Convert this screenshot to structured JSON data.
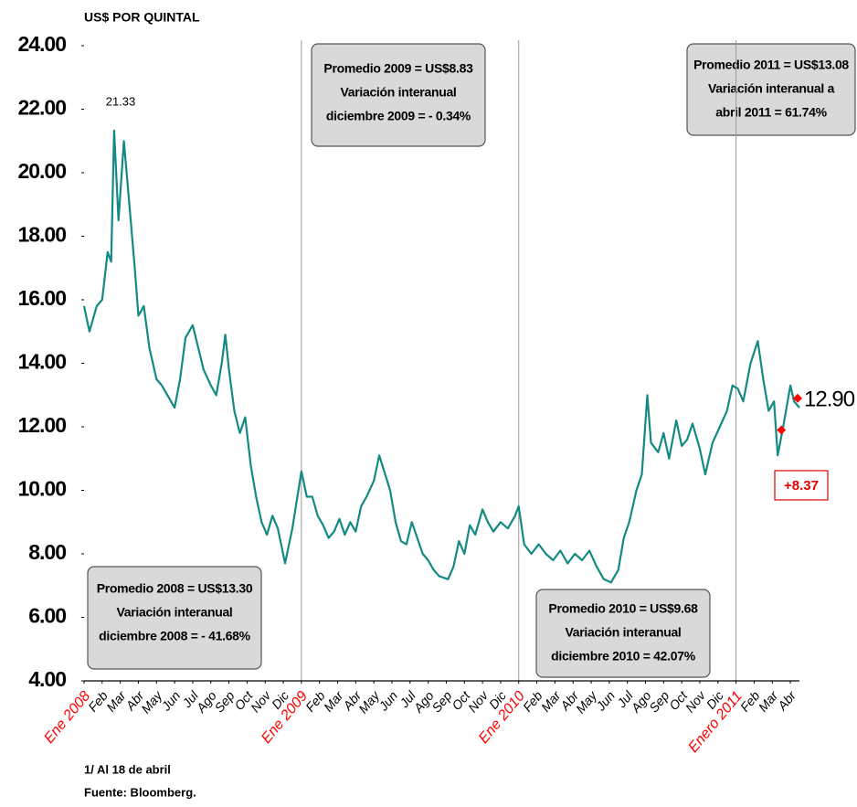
{
  "chart_data": {
    "type": "line",
    "ylabel": "US$ POR QUINTAL",
    "color": "#138a84",
    "xlim": [
      0,
      39.5
    ],
    "ylim": [
      4,
      24
    ],
    "yticks": [
      {
        "value": 4,
        "label": "4.00"
      },
      {
        "value": 6,
        "label": "6.00"
      },
      {
        "value": 8,
        "label": "8.00"
      },
      {
        "value": 10,
        "label": "10.00"
      },
      {
        "value": 12,
        "label": "12.00"
      },
      {
        "value": 14,
        "label": "14.00"
      },
      {
        "value": 16,
        "label": "16.00"
      },
      {
        "value": 18,
        "label": "18.00"
      },
      {
        "value": 20,
        "label": "20.00"
      },
      {
        "value": 22,
        "label": "22.00"
      },
      {
        "value": 24,
        "label": "24.00"
      }
    ],
    "xticks": [
      {
        "value": 0,
        "label": "Ene 2008",
        "color": "#ff0000"
      },
      {
        "value": 1,
        "label": "Feb"
      },
      {
        "value": 2,
        "label": "Mar"
      },
      {
        "value": 3,
        "label": "Abr"
      },
      {
        "value": 4,
        "label": "May"
      },
      {
        "value": 5,
        "label": "Jun"
      },
      {
        "value": 6,
        "label": "Jul"
      },
      {
        "value": 7,
        "label": "Ago"
      },
      {
        "value": 8,
        "label": "Sep"
      },
      {
        "value": 9,
        "label": "Oct"
      },
      {
        "value": 10,
        "label": "Nov"
      },
      {
        "value": 11,
        "label": "Dic"
      },
      {
        "value": 12,
        "label": "Ene 2009",
        "color": "#ff0000"
      },
      {
        "value": 13,
        "label": "Feb"
      },
      {
        "value": 14,
        "label": "Mar"
      },
      {
        "value": 15,
        "label": "Abr"
      },
      {
        "value": 16,
        "label": "May"
      },
      {
        "value": 17,
        "label": "Jun"
      },
      {
        "value": 18,
        "label": "Jul"
      },
      {
        "value": 19,
        "label": "Ago"
      },
      {
        "value": 20,
        "label": "Sep"
      },
      {
        "value": 21,
        "label": "Oct"
      },
      {
        "value": 22,
        "label": "Nov"
      },
      {
        "value": 23,
        "label": "Dic"
      },
      {
        "value": 24,
        "label": "Ene 2010",
        "color": "#ff0000"
      },
      {
        "value": 25,
        "label": "Feb"
      },
      {
        "value": 26,
        "label": "Mar"
      },
      {
        "value": 27,
        "label": "Abr"
      },
      {
        "value": 28,
        "label": "May"
      },
      {
        "value": 29,
        "label": "Jun"
      },
      {
        "value": 30,
        "label": "Jul"
      },
      {
        "value": 31,
        "label": "Ago"
      },
      {
        "value": 32,
        "label": "Sep"
      },
      {
        "value": 33,
        "label": "Oct"
      },
      {
        "value": 34,
        "label": "Nov"
      },
      {
        "value": 35,
        "label": "Dic"
      },
      {
        "value": 36,
        "label": "Enero 2011",
        "color": "#ff0000"
      },
      {
        "value": 37,
        "label": "Feb"
      },
      {
        "value": 38,
        "label": "Mar"
      },
      {
        "value": 39,
        "label": "Abr"
      }
    ],
    "vlines": [
      12,
      24,
      36
    ],
    "x": [
      0,
      0.3,
      0.7,
      1.0,
      1.3,
      1.5,
      1.66,
      1.9,
      2.2,
      2.5,
      2.8,
      3.0,
      3.3,
      3.6,
      4.0,
      4.3,
      4.6,
      5.0,
      5.3,
      5.6,
      6.0,
      6.3,
      6.6,
      7.0,
      7.3,
      7.6,
      7.8,
      8.0,
      8.3,
      8.6,
      8.9,
      9.2,
      9.5,
      9.8,
      10.1,
      10.4,
      10.7,
      11.1,
      11.5,
      12.0,
      12.3,
      12.6,
      12.9,
      13.2,
      13.5,
      13.8,
      14.1,
      14.4,
      14.7,
      15.0,
      15.3,
      15.6,
      16.0,
      16.3,
      16.9,
      17.2,
      17.5,
      17.8,
      18.1,
      18.4,
      18.7,
      19.0,
      19.3,
      19.6,
      20.1,
      20.4,
      20.7,
      21.0,
      21.3,
      21.6,
      22.0,
      22.3,
      22.6,
      23.0,
      23.4,
      23.8,
      24.0,
      24.3,
      24.7,
      25.1,
      25.5,
      25.9,
      26.3,
      26.7,
      27.1,
      27.5,
      27.9,
      28.3,
      28.7,
      29.1,
      29.5,
      29.8,
      30.1,
      30.5,
      30.8,
      31.1,
      31.3,
      31.7,
      32.0,
      32.3,
      32.7,
      33.0,
      33.3,
      33.6,
      34.0,
      34.3,
      34.7,
      35.1,
      35.5,
      35.8,
      36.1,
      36.4,
      36.8,
      37.2,
      37.5,
      37.8,
      38.1,
      38.3,
      38.6,
      39.0,
      39.2,
      39.5
    ],
    "values": [
      15.8,
      15.0,
      15.8,
      16.0,
      17.5,
      17.2,
      21.33,
      18.5,
      21.0,
      19.0,
      17.0,
      15.5,
      15.8,
      14.5,
      13.5,
      13.3,
      13.0,
      12.6,
      13.5,
      14.8,
      15.2,
      14.5,
      13.8,
      13.3,
      13.0,
      14.0,
      14.9,
      13.8,
      12.5,
      11.8,
      12.3,
      10.8,
      9.8,
      9.0,
      8.6,
      9.2,
      8.8,
      7.7,
      8.8,
      10.6,
      9.8,
      9.8,
      9.2,
      8.9,
      8.5,
      8.7,
      9.1,
      8.6,
      9.0,
      8.7,
      9.5,
      9.8,
      10.3,
      11.1,
      10.0,
      9.0,
      8.4,
      8.3,
      9.0,
      8.5,
      8.0,
      7.8,
      7.5,
      7.3,
      7.2,
      7.6,
      8.4,
      8.0,
      8.9,
      8.6,
      9.4,
      9.0,
      8.7,
      9.0,
      8.8,
      9.2,
      9.5,
      8.3,
      8.0,
      8.3,
      8.0,
      7.8,
      8.1,
      7.7,
      8.0,
      7.8,
      8.1,
      7.6,
      7.2,
      7.1,
      7.5,
      8.5,
      9.0,
      10.0,
      10.5,
      13.0,
      11.5,
      11.2,
      11.8,
      11.0,
      12.2,
      11.4,
      11.6,
      12.1,
      11.3,
      10.5,
      11.5,
      12.0,
      12.5,
      13.3,
      13.2,
      12.8,
      14.0,
      14.7,
      13.5,
      12.5,
      12.8,
      11.1,
      12.0,
      13.3,
      12.8,
      12.6
    ],
    "markers": {
      "color": "#ff0000",
      "x": [
        38.5,
        39.4
      ],
      "values": [
        11.9,
        12.9
      ]
    },
    "peak_label": "21.33",
    "last_label": "12.90",
    "change_label": "+8.37",
    "boxes": [
      [
        "Promedio 2008 = US$13.30",
        "Variación interanual",
        "diciembre 2008 = - 41.68%"
      ],
      [
        "Promedio 2009 = US$8.83",
        "Variación interanual",
        "diciembre 2009 = - 0.34%"
      ],
      [
        "Promedio 2010 = US$9.68",
        "Variación interanual",
        "diciembre 2010 = 42.07%"
      ],
      [
        "Promedio 2011 = US$13.08",
        "Variación interanual  a",
        "abril 2011 = 61.74%"
      ]
    ],
    "notes": [
      "1/ Al 18 de abril",
      "Fuente: Bloomberg."
    ]
  }
}
